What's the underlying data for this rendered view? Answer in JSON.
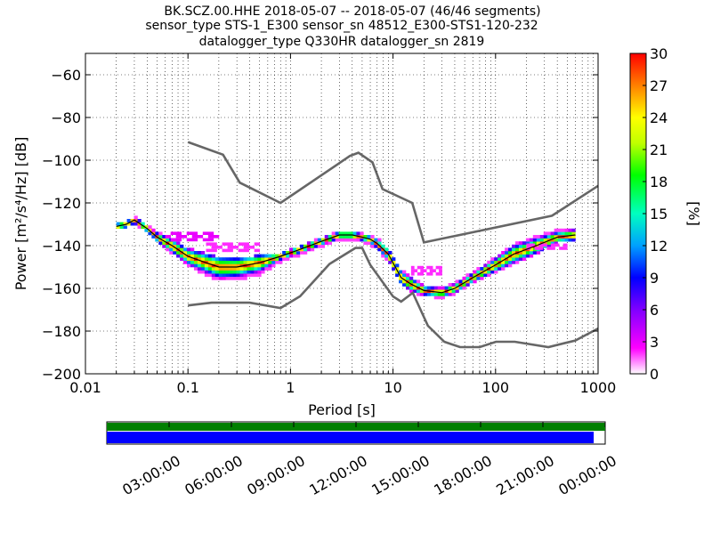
{
  "title": {
    "line1": "BK.SCZ.00.HHE   2018-05-07 -- 2018-05-07  (46/46 segments)",
    "line2": "sensor_type STS-1_E300 sensor_sn 48512_E300-STS1-120-232",
    "line3": "datalogger_type Q330HR datalogger_sn 2819"
  },
  "chart_data": {
    "type": "heatmap",
    "subtype": "probabilistic power spectral density",
    "xlabel": "Period [s]",
    "ylabel": "Power [m²/s⁴/Hz] [dB]",
    "xscale": "log",
    "xlim": [
      0.01,
      1000
    ],
    "ylim": [
      -200,
      -50
    ],
    "xticks": [
      {
        "v": 0.01,
        "label": "0.01"
      },
      {
        "v": 0.1,
        "label": "0.1"
      },
      {
        "v": 1,
        "label": "1"
      },
      {
        "v": 10,
        "label": "10"
      },
      {
        "v": 100,
        "label": "100"
      },
      {
        "v": 1000,
        "label": "1000"
      }
    ],
    "yticks": [
      {
        "v": -60,
        "label": "−60"
      },
      {
        "v": -80,
        "label": "−80"
      },
      {
        "v": -100,
        "label": "−100"
      },
      {
        "v": -120,
        "label": "−120"
      },
      {
        "v": -140,
        "label": "−140"
      },
      {
        "v": -160,
        "label": "−160"
      },
      {
        "v": -180,
        "label": "−180"
      },
      {
        "v": -200,
        "label": "−200"
      }
    ],
    "grid": "dotted, log-spaced period gridlines",
    "colorbar": {
      "label": "[%]",
      "range": [
        0,
        30
      ],
      "ticks": [
        "0",
        "3",
        "6",
        "9",
        "12",
        "15",
        "18",
        "21",
        "24",
        "27",
        "30"
      ]
    },
    "noise_models": [
      {
        "x": [
          0.1,
          0.22,
          0.32,
          0.8,
          3.8,
          4.6,
          6.3,
          7.9,
          15.4,
          20,
          354.8,
          1000
        ],
        "y": [
          -91.5,
          -97.4,
          -110.5,
          -120,
          -98,
          -96.5,
          -101,
          -113.5,
          -120,
          -138.5,
          -126,
          -112
        ]
      },
      {
        "x": [
          0.1,
          0.17,
          0.4,
          0.8,
          1.24,
          2.4,
          4.3,
          5,
          6,
          10,
          12,
          15.6,
          21.9,
          31.6,
          45,
          70,
          101,
          154,
          328,
          600,
          1000
        ],
        "y": [
          -168,
          -166.7,
          -166.7,
          -169.2,
          -163.7,
          -148.6,
          -141.1,
          -141.1,
          -149,
          -163.8,
          -166.2,
          -162.1,
          -177.5,
          -185,
          -187.5,
          -187.5,
          -185,
          -185,
          -187.5,
          -184.4,
          -178.8
        ]
      }
    ],
    "mode_curve": {
      "x": [
        0.02,
        0.025,
        0.03,
        0.04,
        0.05,
        0.07,
        0.1,
        0.15,
        0.2,
        0.3,
        0.5,
        0.8,
        1.2,
        2,
        3,
        4,
        5,
        6,
        7,
        9,
        12,
        15,
        20,
        30,
        40,
        60,
        100,
        150,
        250,
        400,
        600
      ],
      "y": [
        -131,
        -130,
        -128,
        -132,
        -136,
        -140,
        -145,
        -148,
        -150,
        -150,
        -148,
        -145,
        -142,
        -138,
        -135,
        -135,
        -136,
        -137,
        -139,
        -144,
        -155,
        -158,
        -161,
        -162,
        -160,
        -155,
        -149,
        -144,
        -140,
        -136,
        -135
      ]
    },
    "percentile_envelopes": {
      "lower": {
        "x": [
          0.02,
          0.025,
          0.03,
          0.04,
          0.05,
          0.07,
          0.1,
          0.15,
          0.2,
          0.3,
          0.5,
          0.8,
          1.2,
          2,
          3,
          4,
          5,
          6,
          7,
          9,
          12,
          15,
          20,
          30,
          40,
          60,
          100,
          150,
          250,
          400,
          600
        ],
        "y": [
          -132,
          -131,
          -129,
          -133,
          -138,
          -143,
          -149,
          -153,
          -156,
          -156,
          -153,
          -147,
          -144,
          -140,
          -137,
          -137,
          -138,
          -139,
          -141,
          -147,
          -158,
          -161,
          -163,
          -164,
          -162,
          -157,
          -152,
          -148,
          -143,
          -138,
          -137
        ]
      },
      "upper": {
        "x": [
          0.02,
          0.025,
          0.03,
          0.04,
          0.05,
          0.07,
          0.1,
          0.15,
          0.2,
          0.3,
          0.5,
          0.8,
          1.2,
          2,
          3,
          4,
          5,
          6,
          7,
          9,
          12,
          15,
          20,
          30,
          40,
          60,
          100,
          150,
          250,
          400,
          600
        ],
        "y": [
          -130,
          -129,
          -127,
          -131,
          -134,
          -137,
          -142,
          -144,
          -146,
          -147,
          -145,
          -144,
          -141,
          -137,
          -134,
          -134,
          -135,
          -136,
          -137,
          -142,
          -152,
          -155,
          -159,
          -160,
          -158,
          -153,
          -146,
          -140,
          -136,
          -133,
          -132
        ]
      }
    },
    "outlier_patches": [
      {
        "x": [
          0.06,
          0.2
        ],
        "y": [
          -138,
          -134
        ],
        "pct": 3
      },
      {
        "x": [
          0.15,
          0.5
        ],
        "y": [
          -143,
          -139
        ],
        "pct": 2
      },
      {
        "x": [
          15,
          30
        ],
        "y": [
          -154,
          -150
        ],
        "pct": 2
      },
      {
        "x": [
          200,
          500
        ],
        "y": [
          -142,
          -139
        ],
        "pct": 2
      }
    ]
  },
  "timeline": {
    "labels": [
      "03:00:00",
      "06:00:00",
      "09:00:00",
      "12:00:00",
      "15:00:00",
      "18:00:00",
      "21:00:00",
      "00:00:00"
    ],
    "coverage_fraction": 0.977,
    "colors": {
      "top_bar": "#007f00",
      "bottom_bar": "#0000ff"
    }
  }
}
